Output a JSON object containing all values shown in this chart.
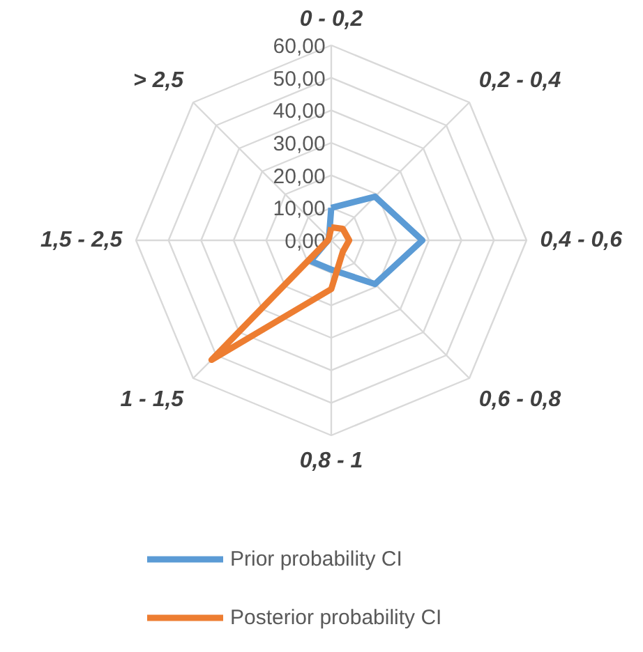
{
  "chart_data": {
    "type": "radar",
    "categories": [
      "0 - 0,2",
      "0,2 - 0,4",
      "0,4 - 0,6",
      "0,6 - 0,8",
      "0,8 - 1",
      "1 - 1,5",
      "1,5 - 2,5",
      "> 2,5"
    ],
    "series": [
      {
        "name": "Prior probability CI",
        "color": "#5b9bd5",
        "values": [
          10,
          19,
          28,
          19,
          9,
          9,
          1,
          1
        ]
      },
      {
        "name": "Posterior probability CI",
        "color": "#ed7d31",
        "values": [
          4,
          5,
          5.5,
          5,
          15,
          52,
          1,
          1
        ]
      }
    ],
    "ylim": [
      0,
      60
    ],
    "yticks": [
      {
        "value": 0,
        "label": "0,00"
      },
      {
        "value": 10,
        "label": "10,00"
      },
      {
        "value": 20,
        "label": "20,00"
      },
      {
        "value": 30,
        "label": "30,00"
      },
      {
        "value": 40,
        "label": "40,00"
      },
      {
        "value": 50,
        "label": "50,00"
      },
      {
        "value": 60,
        "label": "60,00"
      }
    ],
    "grid": true,
    "legend": "bottom",
    "marker": "none",
    "line_style": "solid"
  }
}
